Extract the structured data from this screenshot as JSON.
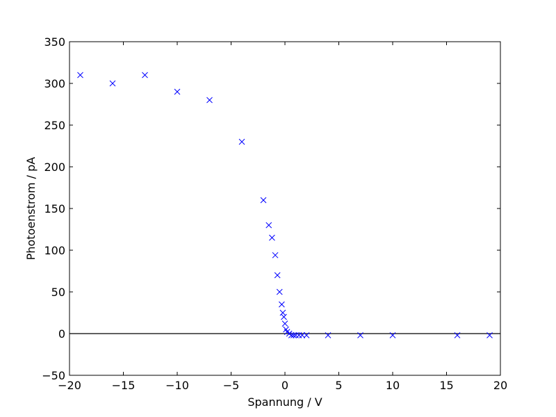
{
  "chart_data": {
    "type": "scatter",
    "title": "",
    "xlabel": "Spannung / V",
    "ylabel": "Photoenstrom / pA",
    "xlim": [
      -20,
      20
    ],
    "ylim": [
      -50,
      350
    ],
    "xticks": [
      -20,
      -15,
      -10,
      -5,
      0,
      5,
      10,
      15,
      20
    ],
    "yticks": [
      -50,
      0,
      50,
      100,
      150,
      200,
      250,
      300,
      350
    ],
    "xtick_labels": [
      "−20",
      "−15",
      "−10",
      "−5",
      "0",
      "5",
      "10",
      "15",
      "20"
    ],
    "ytick_labels": [
      "−50",
      "0",
      "50",
      "100",
      "150",
      "200",
      "250",
      "300",
      "350"
    ],
    "grid": false,
    "zero_line": true,
    "marker": "x",
    "colors": {
      "marker": "#0000ff",
      "axes": "#000000",
      "zero_line": "#000000"
    },
    "series": [
      {
        "points": [
          [
            -19,
            310
          ],
          [
            -16,
            300
          ],
          [
            -13,
            310
          ],
          [
            -10,
            290
          ],
          [
            -7,
            280
          ],
          [
            -4,
            230
          ],
          [
            -2,
            160
          ],
          [
            -1.5,
            130
          ],
          [
            -1.2,
            115
          ],
          [
            -0.9,
            94
          ],
          [
            -0.7,
            70
          ],
          [
            -0.5,
            50
          ],
          [
            -0.3,
            35
          ],
          [
            -0.2,
            25
          ],
          [
            -0.1,
            20
          ],
          [
            0,
            12
          ],
          [
            0.1,
            5
          ],
          [
            0.2,
            2
          ],
          [
            0.4,
            0
          ],
          [
            0.6,
            -2
          ],
          [
            0.8,
            -2
          ],
          [
            1.0,
            -2
          ],
          [
            1.3,
            -2
          ],
          [
            1.6,
            -2
          ],
          [
            2,
            -2
          ],
          [
            4,
            -2
          ],
          [
            7,
            -2
          ],
          [
            10,
            -2
          ],
          [
            16,
            -2
          ],
          [
            19,
            -2
          ]
        ]
      }
    ]
  }
}
